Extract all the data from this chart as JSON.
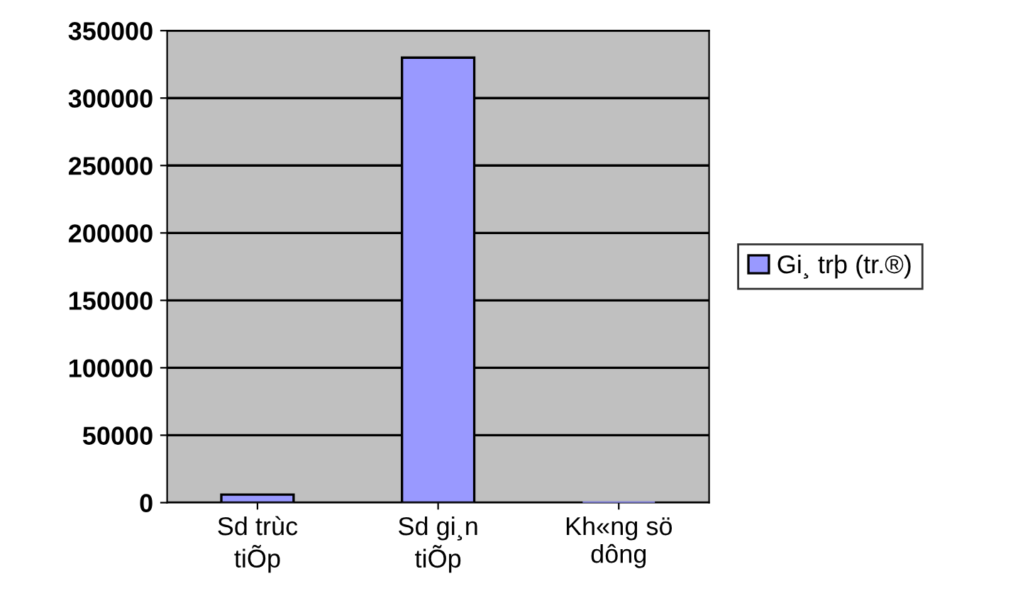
{
  "chart_data": {
    "type": "bar",
    "categories": [
      "Sd trùc\ntiÕp",
      "Sd gi¸n\ntiÕp",
      "Kh«ng sö\ndông"
    ],
    "series": [
      {
        "name": "Gi¸ trþ (tr.®)",
        "color": "#9999ff",
        "values": [
          6000,
          330000,
          0
        ]
      }
    ],
    "ylim": [
      0,
      350000
    ],
    "yticks": [
      0,
      50000,
      100000,
      150000,
      200000,
      250000,
      300000,
      350000
    ],
    "grid": "y",
    "legend": "right"
  }
}
